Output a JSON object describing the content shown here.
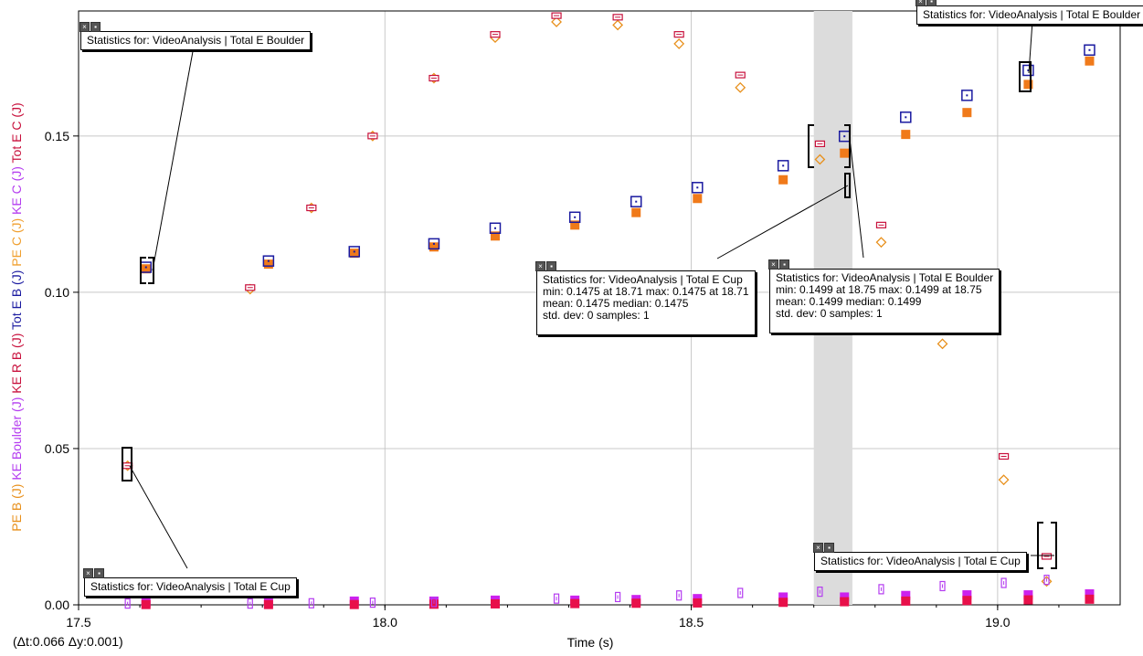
{
  "chart_data": {
    "type": "scatter",
    "xlabel": "Time (s)",
    "ylabel_parts": [
      {
        "text": "PE B (J)",
        "color": "#e8901c"
      },
      {
        "text": "KE Boulder (J)",
        "color": "#b43cf0"
      },
      {
        "text": "KE R B (J)",
        "color": "#c8103c"
      },
      {
        "text": "Tot E B (J)",
        "color": "#1a1aa0"
      },
      {
        "text": "PE C (J)",
        "color": "#f0a030"
      },
      {
        "text": "KE C (J)",
        "color": "#b43cf0"
      },
      {
        "text": "Tot E C (J)",
        "color": "#c8103c"
      }
    ],
    "xlim": [
      17.5,
      19.2
    ],
    "ylim": [
      0.0,
      0.19
    ],
    "x_ticks": [
      "17.5",
      "18.0",
      "18.5",
      "19.0"
    ],
    "x_tick_values": [
      17.5,
      18.0,
      18.5,
      19.0
    ],
    "y_ticks": [
      "0.00",
      "0.05",
      "0.10",
      "0.15"
    ],
    "y_tick_values": [
      0.0,
      0.05,
      0.1,
      0.15
    ],
    "grid": true,
    "highlight_range": [
      18.7,
      18.763
    ],
    "series": [
      {
        "key": "pe_b",
        "marker": "filled-square",
        "color": "#f07a1a",
        "points": [
          [
            17.61,
            0.1075
          ],
          [
            17.81,
            0.109
          ],
          [
            17.95,
            0.1125
          ],
          [
            18.08,
            0.1145
          ],
          [
            18.18,
            0.118
          ],
          [
            18.31,
            0.1215
          ],
          [
            18.41,
            0.1255
          ],
          [
            18.51,
            0.13
          ],
          [
            18.65,
            0.136
          ],
          [
            18.75,
            0.1445
          ],
          [
            18.85,
            0.1505
          ],
          [
            18.95,
            0.1575
          ],
          [
            19.05,
            0.1665
          ],
          [
            19.15,
            0.174
          ]
        ]
      },
      {
        "key": "tot_e_b",
        "marker": "open-square-dot",
        "color": "#1a1aa0",
        "points": [
          [
            17.61,
            0.108
          ],
          [
            17.81,
            0.11
          ],
          [
            17.95,
            0.113
          ],
          [
            18.08,
            0.1155
          ],
          [
            18.18,
            0.1205
          ],
          [
            18.31,
            0.124
          ],
          [
            18.41,
            0.129
          ],
          [
            18.51,
            0.1335
          ],
          [
            18.65,
            0.1405
          ],
          [
            18.75,
            0.1499
          ],
          [
            18.85,
            0.156
          ],
          [
            18.95,
            0.163
          ],
          [
            19.05,
            0.171
          ],
          [
            19.15,
            0.1775
          ]
        ]
      },
      {
        "key": "ke_boulder",
        "marker": "filled-square",
        "color": "#cc22ee",
        "points": [
          [
            17.61,
            0.0008
          ],
          [
            17.81,
            0.0008
          ],
          [
            17.95,
            0.0012
          ],
          [
            18.08,
            0.0012
          ],
          [
            18.18,
            0.0015
          ],
          [
            18.31,
            0.0015
          ],
          [
            18.41,
            0.0017
          ],
          [
            18.51,
            0.002
          ],
          [
            18.65,
            0.0025
          ],
          [
            18.75,
            0.0025
          ],
          [
            18.85,
            0.003
          ],
          [
            18.95,
            0.0032
          ],
          [
            19.05,
            0.0032
          ],
          [
            19.15,
            0.0035
          ]
        ]
      },
      {
        "key": "ke_r_b",
        "marker": "filled-square",
        "color": "#e8104a",
        "points": [
          [
            17.61,
            0.0001
          ],
          [
            17.81,
            0.0001
          ],
          [
            17.95,
            0.0001
          ],
          [
            18.08,
            0.0002
          ],
          [
            18.18,
            0.0003
          ],
          [
            18.31,
            0.0004
          ],
          [
            18.41,
            0.0005
          ],
          [
            18.51,
            0.0006
          ],
          [
            18.65,
            0.0008
          ],
          [
            18.75,
            0.001
          ],
          [
            18.85,
            0.0012
          ],
          [
            18.95,
            0.0014
          ],
          [
            19.05,
            0.0016
          ],
          [
            19.15,
            0.0018
          ]
        ]
      },
      {
        "key": "pe_c",
        "marker": "open-diamond",
        "color": "#e8901c",
        "points": [
          [
            17.58,
            0.0445
          ],
          [
            17.78,
            0.101
          ],
          [
            17.88,
            0.127
          ],
          [
            17.98,
            0.15
          ],
          [
            18.08,
            0.1685
          ],
          [
            18.18,
            0.1815
          ],
          [
            18.28,
            0.1865
          ],
          [
            18.38,
            0.1855
          ],
          [
            18.48,
            0.1795
          ],
          [
            18.58,
            0.1655
          ],
          [
            18.71,
            0.1425
          ],
          [
            18.81,
            0.116
          ],
          [
            18.91,
            0.0835
          ],
          [
            19.01,
            0.04
          ],
          [
            19.08,
            0.0075
          ]
        ]
      },
      {
        "key": "tot_e_c",
        "marker": "open-rect-line",
        "color": "#c8103c",
        "points": [
          [
            17.58,
            0.0445
          ],
          [
            17.78,
            0.1015
          ],
          [
            17.88,
            0.127
          ],
          [
            17.98,
            0.15
          ],
          [
            18.08,
            0.1685
          ],
          [
            18.18,
            0.1825
          ],
          [
            18.28,
            0.1885
          ],
          [
            18.38,
            0.188
          ],
          [
            18.48,
            0.1825
          ],
          [
            18.58,
            0.1695
          ],
          [
            18.71,
            0.1475
          ],
          [
            18.81,
            0.1215
          ],
          [
            19.01,
            0.0475
          ],
          [
            19.08,
            0.0155
          ]
        ]
      },
      {
        "key": "ke_c",
        "marker": "open-rect-tall",
        "color": "#b43cf0",
        "points": [
          [
            17.58,
            0.0004
          ],
          [
            17.78,
            0.0004
          ],
          [
            17.88,
            0.0005
          ],
          [
            17.98,
            0.0007
          ],
          [
            18.08,
            0.0009
          ],
          [
            18.28,
            0.002
          ],
          [
            18.38,
            0.0025
          ],
          [
            18.48,
            0.003
          ],
          [
            18.58,
            0.0038
          ],
          [
            18.71,
            0.0042
          ],
          [
            18.81,
            0.005
          ],
          [
            18.91,
            0.006
          ],
          [
            19.01,
            0.007
          ],
          [
            19.08,
            0.008
          ]
        ]
      }
    ]
  },
  "annotations": [
    {
      "title": "Statistics for: VideoAnalysis | Total E Boulder",
      "lines": []
    },
    {
      "title": "Statistics for: VideoAnalysis | Total E Boulder",
      "lines": []
    },
    {
      "title": "Statistics for: VideoAnalysis | Total E Cup",
      "lines": [
        "min: 0.1475 at 18.71 max: 0.1475 at 18.71",
        "mean: 0.1475 median: 0.1475",
        "std. dev: 0 samples: 1"
      ]
    },
    {
      "title": "Statistics for: VideoAnalysis | Total E Boulder",
      "lines": [
        "min: 0.1499 at 18.75 max: 0.1499 at 18.75",
        "mean: 0.1499 median: 0.1499",
        "std. dev: 0 samples: 1"
      ]
    },
    {
      "title": "Statistics for: VideoAnalysis | Total E Cup",
      "lines": []
    },
    {
      "title": "Statistics for: VideoAnalysis | Total E Cup",
      "lines": []
    }
  ],
  "delta_readout": "(Δt:0.066  Δy:0.001)"
}
